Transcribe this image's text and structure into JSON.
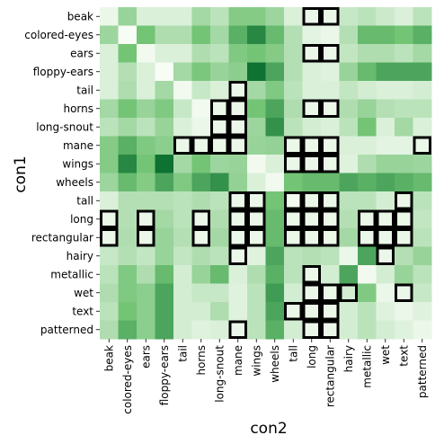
{
  "chart_data": {
    "type": "heatmap",
    "xlabel": "con2",
    "ylabel": "con1",
    "x_categories": [
      "beak",
      "colored-eyes",
      "ears",
      "floppy-ears",
      "tail",
      "horns",
      "long-snout",
      "mane",
      "wings",
      "wheels",
      "tall",
      "long",
      "rectangular",
      "hairy",
      "metallic",
      "wet",
      "text",
      "patterned"
    ],
    "y_categories": [
      "beak",
      "colored-eyes",
      "ears",
      "floppy-ears",
      "tail",
      "horns",
      "long-snout",
      "mane",
      "wings",
      "wheels",
      "tall",
      "long",
      "rectangular",
      "hairy",
      "metallic",
      "wet",
      "text",
      "patterned"
    ],
    "colormap": {
      "low": "#f7fcf5",
      "mid": "#74c476",
      "high": "#00682a"
    },
    "values": [
      [
        0.05,
        0.4,
        0.12,
        0.12,
        0.12,
        0.35,
        0.25,
        0.48,
        0.48,
        0.38,
        0.12,
        0.05,
        0.05,
        0.2,
        0.25,
        0.18,
        0.12,
        0.25
      ],
      [
        0.38,
        0.0,
        0.55,
        0.3,
        0.3,
        0.55,
        0.35,
        0.65,
        0.85,
        0.6,
        0.28,
        0.08,
        0.05,
        0.28,
        0.6,
        0.6,
        0.55,
        0.65
      ],
      [
        0.12,
        0.55,
        0.02,
        0.12,
        0.12,
        0.3,
        0.25,
        0.5,
        0.55,
        0.48,
        0.28,
        0.05,
        0.05,
        0.22,
        0.3,
        0.3,
        0.25,
        0.35
      ],
      [
        0.12,
        0.28,
        0.12,
        0.0,
        0.35,
        0.52,
        0.4,
        0.45,
        0.95,
        0.7,
        0.28,
        0.12,
        0.1,
        0.4,
        0.6,
        0.7,
        0.7,
        0.7
      ],
      [
        0.12,
        0.3,
        0.12,
        0.35,
        0.02,
        0.2,
        0.12,
        0.05,
        0.35,
        0.5,
        0.25,
        0.12,
        0.12,
        0.22,
        0.15,
        0.12,
        0.12,
        0.15
      ],
      [
        0.35,
        0.55,
        0.4,
        0.5,
        0.2,
        0.02,
        0.05,
        0.05,
        0.55,
        0.7,
        0.3,
        0.05,
        0.05,
        0.3,
        0.4,
        0.28,
        0.25,
        0.25
      ],
      [
        0.25,
        0.35,
        0.25,
        0.4,
        0.12,
        0.05,
        0.05,
        0.05,
        0.38,
        0.8,
        0.25,
        0.15,
        0.12,
        0.25,
        0.55,
        0.12,
        0.35,
        0.12
      ],
      [
        0.48,
        0.65,
        0.5,
        0.45,
        0.05,
        0.05,
        0.05,
        0.05,
        0.4,
        0.42,
        0.05,
        0.05,
        0.05,
        0.12,
        0.12,
        0.08,
        0.08,
        0.05
      ],
      [
        0.48,
        0.85,
        0.55,
        0.95,
        0.35,
        0.55,
        0.38,
        0.4,
        0.02,
        0.12,
        0.05,
        0.05,
        0.05,
        0.1,
        0.3,
        0.4,
        0.4,
        0.38
      ],
      [
        0.38,
        0.6,
        0.48,
        0.7,
        0.5,
        0.7,
        0.8,
        0.42,
        0.12,
        0.02,
        0.55,
        0.6,
        0.6,
        0.7,
        0.65,
        0.7,
        0.65,
        0.6
      ],
      [
        0.12,
        0.28,
        0.28,
        0.28,
        0.25,
        0.3,
        0.25,
        0.05,
        0.05,
        0.55,
        0.02,
        0.05,
        0.05,
        0.25,
        0.25,
        0.15,
        0.05,
        0.25
      ],
      [
        0.05,
        0.28,
        0.05,
        0.35,
        0.25,
        0.05,
        0.3,
        0.05,
        0.05,
        0.6,
        0.05,
        0.05,
        0.05,
        0.28,
        0.05,
        0.05,
        0.05,
        0.22
      ],
      [
        0.05,
        0.3,
        0.05,
        0.4,
        0.28,
        0.05,
        0.35,
        0.05,
        0.05,
        0.6,
        0.05,
        0.05,
        0.05,
        0.35,
        0.05,
        0.05,
        0.05,
        0.25
      ],
      [
        0.2,
        0.28,
        0.22,
        0.4,
        0.22,
        0.3,
        0.25,
        0.05,
        0.1,
        0.7,
        0.25,
        0.28,
        0.25,
        0.05,
        0.7,
        0.05,
        0.28,
        0.4
      ],
      [
        0.25,
        0.5,
        0.3,
        0.6,
        0.15,
        0.4,
        0.6,
        0.12,
        0.3,
        0.65,
        0.25,
        0.05,
        0.15,
        0.7,
        0.02,
        0.15,
        0.4,
        0.25
      ],
      [
        0.3,
        0.5,
        0.45,
        0.7,
        0.15,
        0.2,
        0.2,
        0.1,
        0.25,
        0.75,
        0.15,
        0.05,
        0.05,
        0.15,
        0.5,
        0.05,
        0.05,
        0.2
      ],
      [
        0.25,
        0.55,
        0.45,
        0.7,
        0.15,
        0.15,
        0.3,
        0.1,
        0.25,
        0.7,
        0.05,
        0.05,
        0.05,
        0.15,
        0.25,
        0.1,
        0.05,
        0.1
      ],
      [
        0.3,
        0.65,
        0.45,
        0.7,
        0.15,
        0.1,
        0.12,
        0.05,
        0.25,
        0.65,
        0.15,
        0.05,
        0.05,
        0.15,
        0.25,
        0.15,
        0.1,
        0.05
      ]
    ],
    "highlighted_cells": [
      [
        0,
        11
      ],
      [
        0,
        12
      ],
      [
        2,
        11
      ],
      [
        2,
        12
      ],
      [
        4,
        7
      ],
      [
        5,
        6
      ],
      [
        5,
        7
      ],
      [
        5,
        11
      ],
      [
        5,
        12
      ],
      [
        6,
        6
      ],
      [
        6,
        7
      ],
      [
        7,
        4
      ],
      [
        7,
        5
      ],
      [
        7,
        6
      ],
      [
        7,
        7
      ],
      [
        7,
        10
      ],
      [
        7,
        11
      ],
      [
        7,
        12
      ],
      [
        7,
        17
      ],
      [
        8,
        10
      ],
      [
        8,
        11
      ],
      [
        8,
        12
      ],
      [
        10,
        7
      ],
      [
        10,
        8
      ],
      [
        10,
        10
      ],
      [
        10,
        11
      ],
      [
        10,
        12
      ],
      [
        10,
        16
      ],
      [
        11,
        0
      ],
      [
        11,
        2
      ],
      [
        11,
        5
      ],
      [
        11,
        7
      ],
      [
        11,
        8
      ],
      [
        11,
        10
      ],
      [
        11,
        11
      ],
      [
        11,
        12
      ],
      [
        11,
        14
      ],
      [
        11,
        15
      ],
      [
        11,
        16
      ],
      [
        12,
        0
      ],
      [
        12,
        2
      ],
      [
        12,
        5
      ],
      [
        12,
        7
      ],
      [
        12,
        8
      ],
      [
        12,
        10
      ],
      [
        12,
        11
      ],
      [
        12,
        12
      ],
      [
        12,
        14
      ],
      [
        12,
        15
      ],
      [
        12,
        16
      ],
      [
        13,
        7
      ],
      [
        13,
        15
      ],
      [
        14,
        11
      ],
      [
        15,
        11
      ],
      [
        15,
        12
      ],
      [
        15,
        13
      ],
      [
        15,
        16
      ],
      [
        16,
        10
      ],
      [
        16,
        11
      ],
      [
        16,
        12
      ],
      [
        17,
        7
      ],
      [
        17,
        11
      ],
      [
        17,
        12
      ]
    ],
    "grid": false,
    "legend": "none"
  }
}
